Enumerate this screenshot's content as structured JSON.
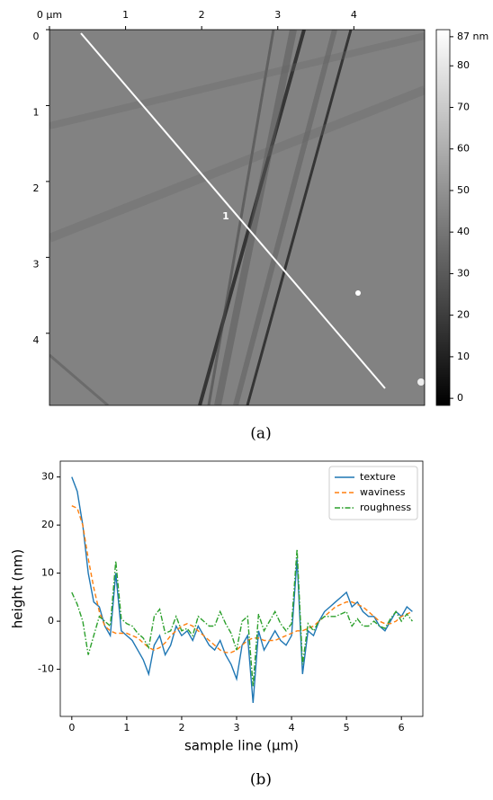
{
  "chart_data": [
    {
      "type": "image",
      "caption": "(a)",
      "annotation": "1",
      "xlim": [
        0,
        4.93
      ],
      "xticks": [
        {
          "value": 0,
          "label": "0 µm"
        },
        1,
        2,
        3,
        4
      ],
      "ylim": [
        0,
        4.95
      ],
      "yticks": [
        0,
        1,
        2,
        3,
        4
      ],
      "colorbar": {
        "lim": [
          -1.7,
          88.7
        ],
        "ticks": [
          0,
          10,
          20,
          30,
          40,
          50,
          60,
          70,
          80,
          {
            "value": 87,
            "label": "87 nm"
          }
        ]
      }
    },
    {
      "type": "line",
      "caption": "(b)",
      "xlabel": "sample line (μm)",
      "ylabel": "height (nm)",
      "xlim": [
        -0.21,
        6.39
      ],
      "xticks": [
        0,
        1,
        2,
        3,
        4,
        5,
        6
      ],
      "ylim": [
        -19.8,
        33.3
      ],
      "yticks": [
        -10,
        0,
        10,
        20,
        30
      ],
      "legend": "upper right",
      "x": [
        0,
        0.1,
        0.2,
        0.3,
        0.4,
        0.5,
        0.6,
        0.7,
        0.8,
        0.9,
        1,
        1.1,
        1.2,
        1.3,
        1.4,
        1.5,
        1.6,
        1.7,
        1.8,
        1.9,
        2,
        2.1,
        2.2,
        2.3,
        2.4,
        2.5,
        2.6,
        2.7,
        2.8,
        2.9,
        3,
        3.1,
        3.2,
        3.3,
        3.4,
        3.5,
        3.6,
        3.7,
        3.8,
        3.9,
        4,
        4.1,
        4.2,
        4.3,
        4.4,
        4.5,
        4.6,
        4.7,
        4.8,
        4.9,
        5,
        5.1,
        5.2,
        5.3,
        5.4,
        5.5,
        5.6,
        5.7,
        5.8,
        5.9,
        6,
        6.1,
        6.2
      ],
      "series": [
        {
          "name": "texture",
          "color": "#1f77b4",
          "dash": "none",
          "values": [
            30,
            27,
            20,
            10,
            4,
            3,
            -1,
            -3,
            10,
            -2,
            -3,
            -4,
            -6,
            -8,
            -11,
            -5,
            -3,
            -7,
            -5,
            -1,
            -3,
            -2,
            -4,
            -1,
            -3,
            -5,
            -6,
            -4,
            -7,
            -9,
            -12,
            -5,
            -3,
            -17,
            -2,
            -6,
            -4,
            -2,
            -4,
            -5,
            -3,
            13,
            -11,
            -2,
            -3,
            0,
            2,
            3,
            4,
            5,
            6,
            3,
            4,
            2,
            1,
            1,
            -1,
            -2,
            0,
            2,
            1,
            3,
            2
          ]
        },
        {
          "name": "waviness",
          "color": "#ff7f0e",
          "dash": "5,3",
          "values": [
            24,
            23.5,
            20,
            13,
            7,
            2,
            -1,
            -2,
            -2.5,
            -2.5,
            -2.5,
            -3,
            -3.5,
            -4.5,
            -5.5,
            -6,
            -5.5,
            -4.5,
            -3,
            -2,
            -1,
            -0.5,
            -1,
            -2,
            -3,
            -4,
            -5,
            -6,
            -6.5,
            -6.5,
            -6,
            -5,
            -4,
            -3.5,
            -3.5,
            -4,
            -4,
            -4,
            -3.5,
            -3,
            -2.5,
            -2,
            -2,
            -1.5,
            -1,
            0,
            1,
            2,
            3,
            3.5,
            4,
            4,
            3.5,
            3,
            2,
            1,
            0,
            -0.5,
            -0.5,
            0,
            1,
            1.5,
            2
          ]
        },
        {
          "name": "roughness",
          "color": "#2ca02c",
          "dash": "6,2,1.5,2",
          "values": [
            6,
            3.5,
            0,
            -7,
            -3,
            1,
            0,
            -1,
            12.5,
            0.5,
            -0.5,
            -1,
            -2.5,
            -3.5,
            -5.5,
            1,
            2.5,
            -2.5,
            -2,
            1,
            -2,
            -1.5,
            -3,
            1,
            0,
            -1,
            -1,
            2,
            -0.5,
            -2.5,
            -6,
            0,
            1,
            -13.5,
            1.5,
            -2,
            0,
            2,
            -0.5,
            -2,
            -0.5,
            15,
            -9,
            -0.5,
            -2,
            0,
            1,
            1,
            1,
            1.5,
            2,
            -1,
            0.5,
            -1,
            -1,
            0,
            -1,
            -1.5,
            0.5,
            2,
            0,
            1.5,
            0
          ]
        }
      ]
    }
  ]
}
